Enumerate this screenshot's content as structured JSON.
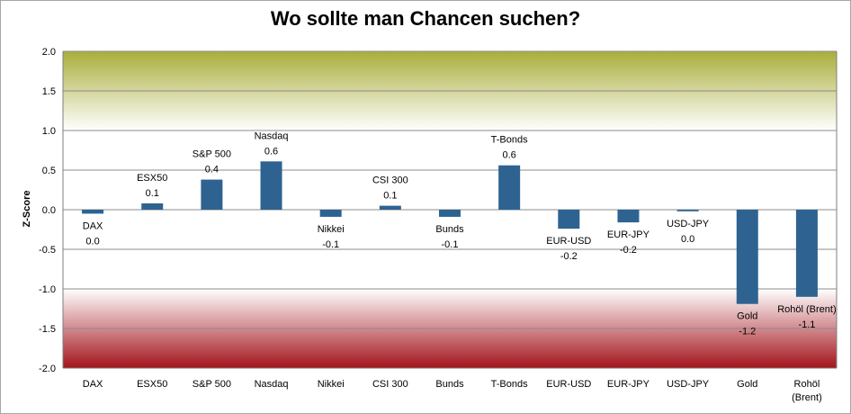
{
  "chart_data": {
    "type": "bar",
    "title": "Wo sollte man Chancen suchen?",
    "ylabel": "Z-Score",
    "xlabel": "",
    "ylim": [
      -2.0,
      2.0
    ],
    "yticks": [
      "2.0",
      "1.5",
      "1.0",
      "0.5",
      "0.0",
      "-0.5",
      "-1.0",
      "-1.5",
      "-2.0"
    ],
    "grid": true,
    "legend": "none",
    "categories": [
      "DAX",
      "ESX50",
      "S&P 500",
      "Nasdaq",
      "Nikkei",
      "CSI 300",
      "Bunds",
      "T-Bonds",
      "EUR-USD",
      "EUR-JPY",
      "USD-JPY",
      "Gold",
      "Rohöl (Brent)"
    ],
    "category_axis_labels": [
      [
        "DAX"
      ],
      [
        "ESX50"
      ],
      [
        "S&P 500"
      ],
      [
        "Nasdaq"
      ],
      [
        "Nikkei"
      ],
      [
        "CSI 300"
      ],
      [
        "Bunds"
      ],
      [
        "T-Bonds"
      ],
      [
        "EUR-USD"
      ],
      [
        "EUR-JPY"
      ],
      [
        "USD-JPY"
      ],
      [
        "Gold"
      ],
      [
        "Rohöl",
        "(Brent)"
      ]
    ],
    "values": [
      -0.05,
      0.08,
      0.38,
      0.61,
      -0.09,
      0.05,
      -0.09,
      0.56,
      -0.24,
      -0.16,
      -0.02,
      -1.19,
      -1.1
    ],
    "data_labels": [
      "0.0",
      "0.1",
      "0.4",
      "0.6",
      "-0.1",
      "0.1",
      "-0.1",
      "0.6",
      "-0.2",
      "-0.2",
      "0.0",
      "-1.2",
      "-1.1"
    ],
    "colors": {
      "bar": "#2e6391",
      "zone_top": "#a9ae3a",
      "zone_bottom": "#a3141c",
      "grid": "#8c8c8c",
      "axis": "#7f7f7f"
    }
  }
}
